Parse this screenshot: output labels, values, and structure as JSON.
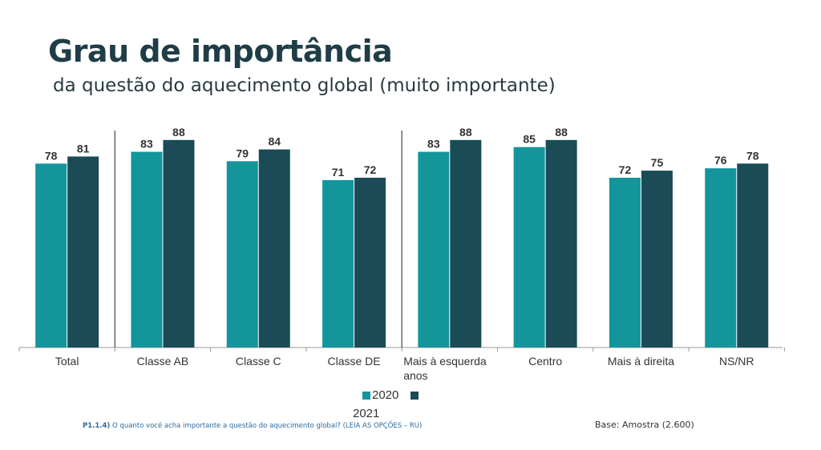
{
  "title": "Grau de importância",
  "subtitle": "da questão do aquecimento global (muito importante)",
  "colors": {
    "series2020": "#14959c",
    "series2021": "#1a4b57",
    "axis": "#999999",
    "divider": "#444444"
  },
  "chart_data": {
    "type": "bar",
    "categories": [
      "Total",
      "Classe AB",
      "Classe C",
      "Classe DE",
      "Mais à esquerda anos",
      "Centro",
      "Mais à direita",
      "NS/NR"
    ],
    "series": [
      {
        "name": "2020",
        "values": [
          78,
          83,
          79,
          71,
          83,
          85,
          72,
          76
        ]
      },
      {
        "name": "2021",
        "values": [
          81,
          88,
          84,
          72,
          88,
          88,
          75,
          78
        ]
      }
    ],
    "ylim": [
      0,
      100
    ],
    "grid": false,
    "legend_placement": "bottom-center"
  },
  "legend": {
    "label_2020": "2020",
    "label_2021": "2021"
  },
  "footnote": {
    "code": "P1.1.4)",
    "text": " O quanto você acha importante a questão do aquecimento global? (LEIA AS OPÇÕES – RU)"
  },
  "base_text": "Base: Amostra (2.600)"
}
